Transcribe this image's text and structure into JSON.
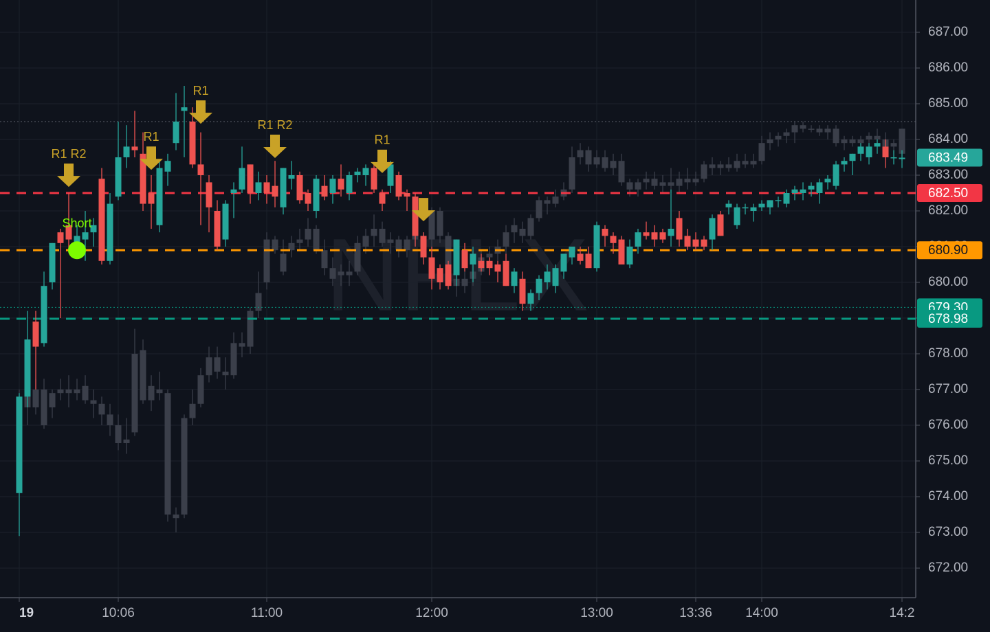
{
  "chart_data": {
    "type": "candlestick",
    "watermark": "NFLX",
    "xlim": [
      -2.3333,
      108.6667
    ],
    "ylim": [
      671.1731,
      687.9038
    ],
    "yticks": [
      {
        "value": 672,
        "label": "672.00"
      },
      {
        "value": 673,
        "label": "673.00"
      },
      {
        "value": 674,
        "label": "674.00"
      },
      {
        "value": 675,
        "label": "675.00"
      },
      {
        "value": 676,
        "label": "676.00"
      },
      {
        "value": 677,
        "label": "677.00"
      },
      {
        "value": 678,
        "label": "678.00"
      },
      {
        "value": 679,
        "label": "679.00"
      },
      {
        "value": 680,
        "label": "680.00"
      },
      {
        "value": 681,
        "label": "681.00"
      },
      {
        "value": 682,
        "label": "682.00"
      },
      {
        "value": 683,
        "label": "683.00"
      },
      {
        "value": 684,
        "label": "684.00"
      },
      {
        "value": 685,
        "label": "685.00"
      },
      {
        "value": 686,
        "label": "686.00"
      },
      {
        "value": 687,
        "label": "687.00"
      }
    ],
    "xticks": [
      {
        "value": 0,
        "label": "19"
      },
      {
        "value": 12,
        "label": "10:06"
      },
      {
        "value": 30,
        "label": "11:00"
      },
      {
        "value": 50,
        "label": "12:00"
      },
      {
        "value": 70,
        "label": "13:00"
      },
      {
        "value": 82,
        "label": "13:36"
      },
      {
        "value": 90,
        "label": "14:00"
      },
      {
        "value": 107,
        "label": "14:2"
      }
    ],
    "grid": true,
    "up_color": "#26a69a",
    "down_color": "#ef5350",
    "overlay_color": "#3b3f4a",
    "candles": [
      [
        674.1,
        676.9,
        672.9,
        676.8
      ],
      [
        676.8,
        679.2,
        676.5,
        678.4
      ],
      [
        678.9,
        679.2,
        677.0,
        678.2
      ],
      [
        678.3,
        680.3,
        678.2,
        679.9
      ],
      [
        680.0,
        681.1,
        679.8,
        681.1
      ],
      [
        681.4,
        681.5,
        679.0,
        681.1
      ],
      [
        681.6,
        682.5,
        680.9,
        681.2
      ],
      [
        681.0,
        681.6,
        680.8,
        681.3
      ],
      [
        681.2,
        682.0,
        680.6,
        681.4
      ],
      [
        681.4,
        681.8,
        681.0,
        681.6
      ],
      [
        682.9,
        683.2,
        680.5,
        680.6
      ],
      [
        680.6,
        682.5,
        680.5,
        682.2
      ],
      [
        682.4,
        684.5,
        682.3,
        683.5
      ],
      [
        683.5,
        684.4,
        683.2,
        683.8
      ],
      [
        683.8,
        684.8,
        683.5,
        683.7
      ],
      [
        683.6,
        684.2,
        682.0,
        682.2
      ],
      [
        682.5,
        683.0,
        681.5,
        682.2
      ],
      [
        681.6,
        683.4,
        681.4,
        683.2
      ],
      [
        683.1,
        683.6,
        682.7,
        683.4
      ],
      [
        683.9,
        685.3,
        683.7,
        684.5
      ],
      [
        684.8,
        685.5,
        683.5,
        684.9
      ],
      [
        684.5,
        684.9,
        683.2,
        683.3
      ],
      [
        683.3,
        684.2,
        681.6,
        683.0
      ],
      [
        682.8,
        683.0,
        681.4,
        682.1
      ],
      [
        682.0,
        682.3,
        680.9,
        681.0
      ],
      [
        681.2,
        682.3,
        681.0,
        682.2
      ],
      [
        682.5,
        682.8,
        681.8,
        682.6
      ],
      [
        682.6,
        683.8,
        682.5,
        683.2
      ],
      [
        683.3,
        683.3,
        682.2,
        682.5
      ],
      [
        682.5,
        683.1,
        682.3,
        682.8
      ],
      [
        682.8,
        683.0,
        682.2,
        682.5
      ],
      [
        682.7,
        683.4,
        682.1,
        682.4
      ],
      [
        682.1,
        683.2,
        681.9,
        683.2
      ],
      [
        682.9,
        683.4,
        682.6,
        683.0
      ],
      [
        683.0,
        683.1,
        682.2,
        682.3
      ],
      [
        682.5,
        682.6,
        682.0,
        682.2
      ],
      [
        682.0,
        683.0,
        681.8,
        682.9
      ],
      [
        682.7,
        683.0,
        682.3,
        682.4
      ],
      [
        682.5,
        683.0,
        682.2,
        682.9
      ],
      [
        682.9,
        683.3,
        682.4,
        682.6
      ],
      [
        682.5,
        683.1,
        682.3,
        683.0
      ],
      [
        683.0,
        683.2,
        682.8,
        683.1
      ],
      [
        683.0,
        683.3,
        682.7,
        683.2
      ],
      [
        683.2,
        683.3,
        682.5,
        682.6
      ],
      [
        682.5,
        682.6,
        682.0,
        682.2
      ],
      [
        682.7,
        683.4,
        682.5,
        683.3
      ],
      [
        683.0,
        683.1,
        682.3,
        682.4
      ],
      [
        682.5,
        682.6,
        682.0,
        682.4
      ],
      [
        682.4,
        682.5,
        681.0,
        681.3
      ],
      [
        681.3,
        681.4,
        680.5,
        680.7
      ],
      [
        680.7,
        681.0,
        679.8,
        680.1
      ],
      [
        680.4,
        680.5,
        679.8,
        680.0
      ],
      [
        680.5,
        680.6,
        679.8,
        679.9
      ],
      [
        680.2,
        681.2,
        679.9,
        681.2
      ],
      [
        680.9,
        681.1,
        680.3,
        680.4
      ],
      [
        680.5,
        681.0,
        680.0,
        680.8
      ],
      [
        680.6,
        680.8,
        680.3,
        680.4
      ],
      [
        680.6,
        680.7,
        680.2,
        680.4
      ],
      [
        680.5,
        680.6,
        680.0,
        680.3
      ],
      [
        680.6,
        680.8,
        679.9,
        679.9
      ],
      [
        679.9,
        680.4,
        679.7,
        680.3
      ],
      [
        680.1,
        680.3,
        679.2,
        679.4
      ],
      [
        679.4,
        679.8,
        679.2,
        679.7
      ],
      [
        679.7,
        680.2,
        679.5,
        680.1
      ],
      [
        680.0,
        680.5,
        679.8,
        680.3
      ],
      [
        679.9,
        680.5,
        679.7,
        680.4
      ],
      [
        680.3,
        680.8,
        680.1,
        680.8
      ],
      [
        680.7,
        681.0,
        680.5,
        681.0
      ],
      [
        680.8,
        681.0,
        680.5,
        680.6
      ],
      [
        680.8,
        681.0,
        680.4,
        680.4
      ],
      [
        680.4,
        681.7,
        680.3,
        681.6
      ],
      [
        681.5,
        681.6,
        681.0,
        681.3
      ],
      [
        681.3,
        681.4,
        680.8,
        681.1
      ],
      [
        681.2,
        681.3,
        680.5,
        680.5
      ],
      [
        680.5,
        681.2,
        680.4,
        681.0
      ],
      [
        681.0,
        681.5,
        680.8,
        681.4
      ],
      [
        681.4,
        681.7,
        681.2,
        681.3
      ],
      [
        681.4,
        681.6,
        681.0,
        681.2
      ],
      [
        681.4,
        681.5,
        681.1,
        681.2
      ],
      [
        681.3,
        682.6,
        681.0,
        681.5
      ],
      [
        681.8,
        682.0,
        681.0,
        681.2
      ],
      [
        681.3,
        681.5,
        680.9,
        681.0
      ],
      [
        681.2,
        681.4,
        680.9,
        681.0
      ],
      [
        681.2,
        681.3,
        680.9,
        681.0
      ],
      [
        681.2,
        681.9,
        680.9,
        681.8
      ],
      [
        681.9,
        682.0,
        681.3,
        681.3
      ],
      [
        682.1,
        682.3,
        681.9,
        682.2
      ],
      [
        681.6,
        682.2,
        681.5,
        682.1
      ],
      [
        682.1,
        682.2,
        681.9,
        682.1
      ],
      [
        682.0,
        682.2,
        681.7,
        682.1
      ],
      [
        682.1,
        682.3,
        682.0,
        682.2
      ],
      [
        682.1,
        682.3,
        681.9,
        682.3
      ],
      [
        682.3,
        682.4,
        682.1,
        682.3
      ],
      [
        682.2,
        682.6,
        682.1,
        682.5
      ],
      [
        682.5,
        682.7,
        682.3,
        682.6
      ],
      [
        682.5,
        682.8,
        682.3,
        682.6
      ],
      [
        682.6,
        682.8,
        682.4,
        682.7
      ],
      [
        682.5,
        682.9,
        682.2,
        682.8
      ],
      [
        682.8,
        683.0,
        682.6,
        682.9
      ],
      [
        682.7,
        683.4,
        682.6,
        683.3
      ],
      [
        683.3,
        683.5,
        683.1,
        683.4
      ],
      [
        683.4,
        683.6,
        683.0,
        683.6
      ],
      [
        683.6,
        683.9,
        683.4,
        683.8
      ],
      [
        683.5,
        683.9,
        683.3,
        683.8
      ],
      [
        683.8,
        684.0,
        683.6,
        683.9
      ],
      [
        683.8,
        684.0,
        683.2,
        683.5
      ],
      [
        683.5,
        683.7,
        683.3,
        683.5
      ],
      [
        683.45,
        683.7,
        683.2,
        683.49
      ]
    ],
    "overlay_candles": [
      [
        675.5,
        677,
        675,
        676.8
      ],
      [
        676.8,
        677.2,
        676,
        676.5
      ],
      [
        676.5,
        677.3,
        676.3,
        677
      ],
      [
        677,
        677.3,
        675.9,
        676.0
      ],
      [
        676.5,
        677,
        676.2,
        676.9
      ],
      [
        676.9,
        677.3,
        676.7,
        677.0
      ],
      [
        677,
        677.4,
        676.5,
        676.9
      ],
      [
        676.9,
        677.3,
        676.7,
        677.0
      ],
      [
        677.1,
        677.4,
        676.6,
        676.7
      ],
      [
        676.7,
        677,
        676.2,
        676.6
      ],
      [
        676.6,
        676.8,
        676,
        676.3
      ],
      [
        676.3,
        676.6,
        675.7,
        676.0
      ],
      [
        676.0,
        676.3,
        675.3,
        675.5
      ],
      [
        675.5,
        676.2,
        675.2,
        675.6
      ],
      [
        675.8,
        678.7,
        675.7,
        678.0
      ],
      [
        678.1,
        678.4,
        676.6,
        676.7
      ],
      [
        676.7,
        677.4,
        676.4,
        677.1
      ],
      [
        677.0,
        677.5,
        676.7,
        676.9
      ],
      [
        676.9,
        677.0,
        673.3,
        673.5
      ],
      [
        673.5,
        673.7,
        673.0,
        673.4
      ],
      [
        673.5,
        676.3,
        673.4,
        676.2
      ],
      [
        676.2,
        677.0,
        676.0,
        676.6
      ],
      [
        676.6,
        677.6,
        676.5,
        677.4
      ],
      [
        677.4,
        678.2,
        677.2,
        677.9
      ],
      [
        677.9,
        678.2,
        677.3,
        677.5
      ],
      [
        677.5,
        677.9,
        677.0,
        677.4
      ],
      [
        677.4,
        678.6,
        677.3,
        678.3
      ],
      [
        678.3,
        678.6,
        677.9,
        678.2
      ],
      [
        678.2,
        679.3,
        678.0,
        679.2
      ],
      [
        679.2,
        680.3,
        679.0,
        679.7
      ],
      [
        680.0,
        681.4,
        679.8,
        681.2
      ],
      [
        681.2,
        681.3,
        680.8,
        680.9
      ],
      [
        680.8,
        681.2,
        680.2,
        680.3
      ],
      [
        680.9,
        681.3,
        680.7,
        681.1
      ],
      [
        681.1,
        681.5,
        680.9,
        681.2
      ],
      [
        681.2,
        681.8,
        681.0,
        681.5
      ],
      [
        681.5,
        681.6,
        680.8,
        680.9
      ],
      [
        680.9,
        681.2,
        680.2,
        680.4
      ],
      [
        680.4,
        680.7,
        679.9,
        680.1
      ],
      [
        680.2,
        680.5,
        679.9,
        680.3
      ],
      [
        680.3,
        680.6,
        679.9,
        680.2
      ],
      [
        680.3,
        681.3,
        680.2,
        681.1
      ],
      [
        681.0,
        681.5,
        680.8,
        681.3
      ],
      [
        681.3,
        681.9,
        681.0,
        681.5
      ],
      [
        681.5,
        681.7,
        681.0,
        681.1
      ],
      [
        681.1,
        681.4,
        680.8,
        681.2
      ],
      [
        681.2,
        681.3,
        680.7,
        680.9
      ],
      [
        680.9,
        681.3,
        680.7,
        681.2
      ],
      [
        681.2,
        681.4,
        681.0,
        681.3
      ],
      [
        681.3,
        681.4,
        681.0,
        681.2
      ],
      [
        681.2,
        682.1,
        681.0,
        682.0
      ],
      [
        682.0,
        682.1,
        681.1,
        681.3
      ],
      [
        681.3,
        681.4,
        679.9,
        680.1
      ],
      [
        680.1,
        680.4,
        679.6,
        679.9
      ],
      [
        679.9,
        680.3,
        679.7,
        680.1
      ],
      [
        680.1,
        680.5,
        679.9,
        680.3
      ],
      [
        680.3,
        680.9,
        680.2,
        680.7
      ],
      [
        680.7,
        681.0,
        680.5,
        680.8
      ],
      [
        680.8,
        681.2,
        680.6,
        681.0
      ],
      [
        681.0,
        681.6,
        680.8,
        681.4
      ],
      [
        681.4,
        681.8,
        681.1,
        681.6
      ],
      [
        681.5,
        681.7,
        681.1,
        681.3
      ],
      [
        681.3,
        681.9,
        681.2,
        681.8
      ],
      [
        681.8,
        682.4,
        681.7,
        682.3
      ],
      [
        682.3,
        682.4,
        681.9,
        682.2
      ],
      [
        682.2,
        682.6,
        682.1,
        682.4
      ],
      [
        682.4,
        682.8,
        682.3,
        682.6
      ],
      [
        682.6,
        683.8,
        682.5,
        683.5
      ],
      [
        683.5,
        683.9,
        683.3,
        683.7
      ],
      [
        683.7,
        683.8,
        683.1,
        683.3
      ],
      [
        683.3,
        683.7,
        683.2,
        683.5
      ],
      [
        683.5,
        683.7,
        683.1,
        683.2
      ],
      [
        683.2,
        683.6,
        683.0,
        683.4
      ],
      [
        683.4,
        683.6,
        682.7,
        682.8
      ],
      [
        682.8,
        682.9,
        682.4,
        682.6
      ],
      [
        682.6,
        682.9,
        682.4,
        682.8
      ],
      [
        682.8,
        683.1,
        682.6,
        682.9
      ],
      [
        682.9,
        683.1,
        682.6,
        682.7
      ],
      [
        682.7,
        683.0,
        682.5,
        682.8
      ],
      [
        682.8,
        683.2,
        682.5,
        682.7
      ],
      [
        682.7,
        683.1,
        682.5,
        682.9
      ],
      [
        682.9,
        683.2,
        682.6,
        682.8
      ],
      [
        682.8,
        683.1,
        682.7,
        682.9
      ],
      [
        682.9,
        683.4,
        682.8,
        683.3
      ],
      [
        683.3,
        683.5,
        683.0,
        683.2
      ],
      [
        683.2,
        683.4,
        683.0,
        683.3
      ],
      [
        683.3,
        683.5,
        683.1,
        683.2
      ],
      [
        683.2,
        683.6,
        683.1,
        683.4
      ],
      [
        683.4,
        683.6,
        683.2,
        683.3
      ],
      [
        683.3,
        683.6,
        683.2,
        683.4
      ],
      [
        683.4,
        684.1,
        683.3,
        683.9
      ],
      [
        683.9,
        684.2,
        683.7,
        684.0
      ],
      [
        684.0,
        684.2,
        683.8,
        684.1
      ],
      [
        684.1,
        684.3,
        683.9,
        684.2
      ],
      [
        684.2,
        684.5,
        683.9,
        684.4
      ],
      [
        684.4,
        684.5,
        684.2,
        684.3
      ],
      [
        684.3,
        684.4,
        684.2,
        684.3
      ],
      [
        684.3,
        684.4,
        684.1,
        684.2
      ],
      [
        684.2,
        684.4,
        684.0,
        684.3
      ],
      [
        684.3,
        684.4,
        683.8,
        683.9
      ],
      [
        683.9,
        684.1,
        683.7,
        684.0
      ],
      [
        684.0,
        684.1,
        683.8,
        683.9
      ],
      [
        683.9,
        684.1,
        683.7,
        684.0
      ],
      [
        684.0,
        684.2,
        683.8,
        684.1
      ],
      [
        684.1,
        684.3,
        683.9,
        684.0
      ],
      [
        684.0,
        684.2,
        683.6,
        683.8
      ],
      [
        683.8,
        684.0,
        683.6,
        683.9
      ],
      [
        683.6,
        684.3,
        683.4,
        684.3
      ]
    ],
    "levels": [
      {
        "value": 684.5,
        "color": "#5d606b",
        "style": "dotted"
      },
      {
        "value": 683.49,
        "label": "683.49",
        "color": "#26a69a",
        "text_color": "#ffffff",
        "style": "none"
      },
      {
        "value": 682.5,
        "label": "682.50",
        "color": "#f23645",
        "text_color": "#ffffff",
        "style": "dashed"
      },
      {
        "value": 680.9,
        "label": "680.90",
        "color": "#ff9800",
        "text_color": "#131722",
        "style": "dashed"
      },
      {
        "value": 679.3,
        "label": "679.30",
        "color": "#089981",
        "text_color": "#ffffff",
        "style": "dotted"
      },
      {
        "value": 678.98,
        "label": "678.98",
        "color": "#089981",
        "text_color": "#ffffff",
        "style": "dashed"
      }
    ],
    "signals": [
      {
        "index": 6,
        "price": 682.67,
        "label": "R1 R2"
      },
      {
        "index": 16,
        "price": 683.15,
        "label": "R1"
      },
      {
        "index": 22,
        "price": 684.44,
        "label": "R1"
      },
      {
        "index": 31,
        "price": 683.48,
        "label": "R1 R2"
      },
      {
        "index": 44,
        "price": 683.06,
        "label": "R1"
      },
      {
        "index": 49,
        "price": 681.71
      }
    ],
    "signal_color": "#c9a227",
    "entry": {
      "index": 7,
      "price": 680.9,
      "label": "Short",
      "color": "#7cfc00"
    }
  }
}
